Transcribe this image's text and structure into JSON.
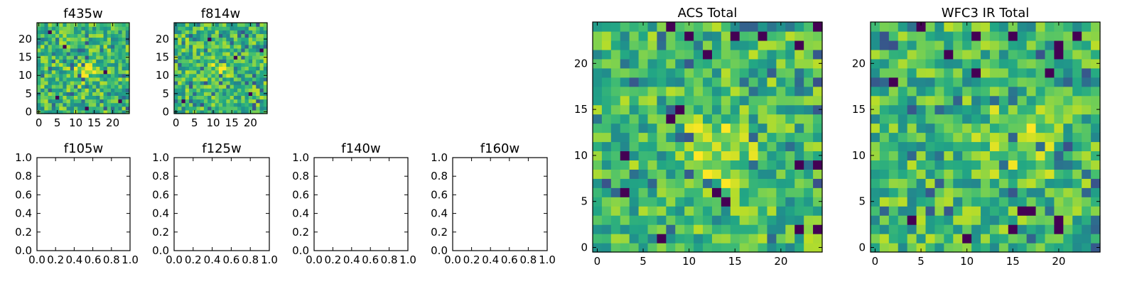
{
  "chart_data": [
    {
      "id": "f435w",
      "type": "heatmap",
      "title": "f435w",
      "nx": 25,
      "ny": 25,
      "xlim": [
        -0.5,
        24.5
      ],
      "ylim": [
        -0.5,
        24.5
      ],
      "xticks": [
        0,
        5,
        10,
        15,
        20
      ],
      "yticks": [
        0,
        5,
        10,
        15,
        20
      ],
      "xtick_labels": [
        "0",
        "5",
        "10",
        "15",
        "20"
      ],
      "ytick_labels": [
        "0",
        "5",
        "10",
        "15",
        "20"
      ],
      "colormap": "viridis",
      "seed": 435,
      "hotspot": {
        "cx": 12,
        "cy": 11,
        "r": 5
      },
      "dark_pixels": [
        [
          5,
          4
        ],
        [
          13,
          1
        ],
        [
          22,
          3
        ],
        [
          7,
          18
        ],
        [
          18,
          11
        ],
        [
          3,
          22
        ]
      ]
    },
    {
      "id": "f814w",
      "type": "heatmap",
      "title": "f814w",
      "nx": 25,
      "ny": 25,
      "xlim": [
        -0.5,
        24.5
      ],
      "ylim": [
        -0.5,
        24.5
      ],
      "xticks": [
        0,
        5,
        10,
        15,
        20
      ],
      "yticks": [
        0,
        5,
        10,
        15,
        20
      ],
      "xtick_labels": [
        "0",
        "5",
        "10",
        "15",
        "20"
      ],
      "ytick_labels": [
        "0",
        "5",
        "10",
        "15",
        "20"
      ],
      "colormap": "viridis",
      "seed": 814,
      "hotspot": {
        "cx": 12,
        "cy": 12,
        "r": 4
      },
      "dark_pixels": [
        [
          2,
          3
        ],
        [
          20,
          5
        ],
        [
          9,
          20
        ],
        [
          16,
          15
        ],
        [
          23,
          17
        ]
      ]
    },
    {
      "id": "f105w",
      "type": "heatmap",
      "title": "f105w",
      "empty": true,
      "xlim": [
        0.0,
        1.0
      ],
      "ylim": [
        0.0,
        1.0
      ],
      "xticks": [
        0.0,
        0.2,
        0.4,
        0.6,
        0.8,
        1.0
      ],
      "yticks": [
        0.0,
        0.2,
        0.4,
        0.6,
        0.8,
        1.0
      ],
      "xtick_labels": [
        "0.0",
        "0.2",
        "0.4",
        "0.6",
        "0.8",
        "1.0"
      ],
      "ytick_labels": [
        "0.0",
        "0.2",
        "0.4",
        "0.6",
        "0.8",
        "1.0"
      ]
    },
    {
      "id": "f125w",
      "type": "heatmap",
      "title": "f125w",
      "empty": true,
      "xlim": [
        0.0,
        1.0
      ],
      "ylim": [
        0.0,
        1.0
      ],
      "xticks": [
        0.0,
        0.2,
        0.4,
        0.6,
        0.8,
        1.0
      ],
      "yticks": [
        0.0,
        0.2,
        0.4,
        0.6,
        0.8,
        1.0
      ],
      "xtick_labels": [
        "0.0",
        "0.2",
        "0.4",
        "0.6",
        "0.8",
        "1.0"
      ],
      "ytick_labels": [
        "0.0",
        "0.2",
        "0.4",
        "0.6",
        "0.8",
        "1.0"
      ]
    },
    {
      "id": "f140w",
      "type": "heatmap",
      "title": "f140w",
      "empty": true,
      "xlim": [
        0.0,
        1.0
      ],
      "ylim": [
        0.0,
        1.0
      ],
      "xticks": [
        0.0,
        0.2,
        0.4,
        0.6,
        0.8,
        1.0
      ],
      "yticks": [
        0.0,
        0.2,
        0.4,
        0.6,
        0.8,
        1.0
      ],
      "xtick_labels": [
        "0.0",
        "0.2",
        "0.4",
        "0.6",
        "0.8",
        "1.0"
      ],
      "ytick_labels": [
        "0.0",
        "0.2",
        "0.4",
        "0.6",
        "0.8",
        "1.0"
      ]
    },
    {
      "id": "f160w",
      "type": "heatmap",
      "title": "f160w",
      "empty": true,
      "xlim": [
        0.0,
        1.0
      ],
      "ylim": [
        0.0,
        1.0
      ],
      "xticks": [
        0.0,
        0.2,
        0.4,
        0.6,
        0.8,
        1.0
      ],
      "yticks": [
        0.0,
        0.2,
        0.4,
        0.6,
        0.8,
        1.0
      ],
      "xtick_labels": [
        "0.0",
        "0.2",
        "0.4",
        "0.6",
        "0.8",
        "1.0"
      ],
      "ytick_labels": [
        "0.0",
        "0.2",
        "0.4",
        "0.6",
        "0.8",
        "1.0"
      ]
    },
    {
      "id": "acs_total",
      "type": "heatmap",
      "title": "ACS Total",
      "nx": 25,
      "ny": 25,
      "xlim": [
        -0.5,
        24.5
      ],
      "ylim": [
        -0.5,
        24.5
      ],
      "xticks": [
        0,
        5,
        10,
        15,
        20
      ],
      "yticks": [
        0,
        5,
        10,
        15,
        20
      ],
      "xtick_labels": [
        "0",
        "5",
        "10",
        "15",
        "20"
      ],
      "ytick_labels": [
        "0",
        "5",
        "10",
        "15",
        "20"
      ],
      "colormap": "viridis",
      "seed": 1001,
      "hotspot": {
        "cx": 13,
        "cy": 10,
        "r": 6
      },
      "dark_pixels": [
        [
          8,
          24
        ],
        [
          10,
          23
        ],
        [
          15,
          23
        ],
        [
          18,
          23
        ],
        [
          24,
          24
        ],
        [
          12,
          21
        ],
        [
          22,
          22
        ],
        [
          8,
          14
        ],
        [
          9,
          15
        ],
        [
          3,
          10
        ],
        [
          13,
          6
        ],
        [
          3,
          6
        ],
        [
          14,
          5
        ],
        [
          7,
          1
        ],
        [
          22,
          2
        ],
        [
          24,
          2
        ],
        [
          22,
          9
        ],
        [
          24,
          9
        ]
      ]
    },
    {
      "id": "wfc3_ir_total",
      "type": "heatmap",
      "title": "WFC3 IR Total",
      "nx": 25,
      "ny": 25,
      "xlim": [
        -0.5,
        24.5
      ],
      "ylim": [
        -0.5,
        24.5
      ],
      "xticks": [
        0,
        5,
        10,
        15,
        20
      ],
      "yticks": [
        0,
        5,
        10,
        15,
        20
      ],
      "xtick_labels": [
        "0",
        "5",
        "10",
        "15",
        "20"
      ],
      "ytick_labels": [
        "0",
        "5",
        "10",
        "15",
        "20"
      ],
      "colormap": "viridis",
      "seed": 2002,
      "hotspot": {
        "cx": 16,
        "cy": 12,
        "r": 6
      },
      "dark_pixels": [
        [
          5,
          24
        ],
        [
          11,
          23
        ],
        [
          15,
          23
        ],
        [
          20,
          22
        ],
        [
          2,
          18
        ],
        [
          20,
          21
        ],
        [
          22,
          23
        ],
        [
          11,
          19
        ],
        [
          8,
          21
        ],
        [
          19,
          19
        ],
        [
          16,
          4
        ],
        [
          17,
          4
        ],
        [
          20,
          3
        ],
        [
          10,
          1
        ],
        [
          15,
          2
        ],
        [
          20,
          2
        ],
        [
          4,
          3
        ]
      ]
    }
  ]
}
